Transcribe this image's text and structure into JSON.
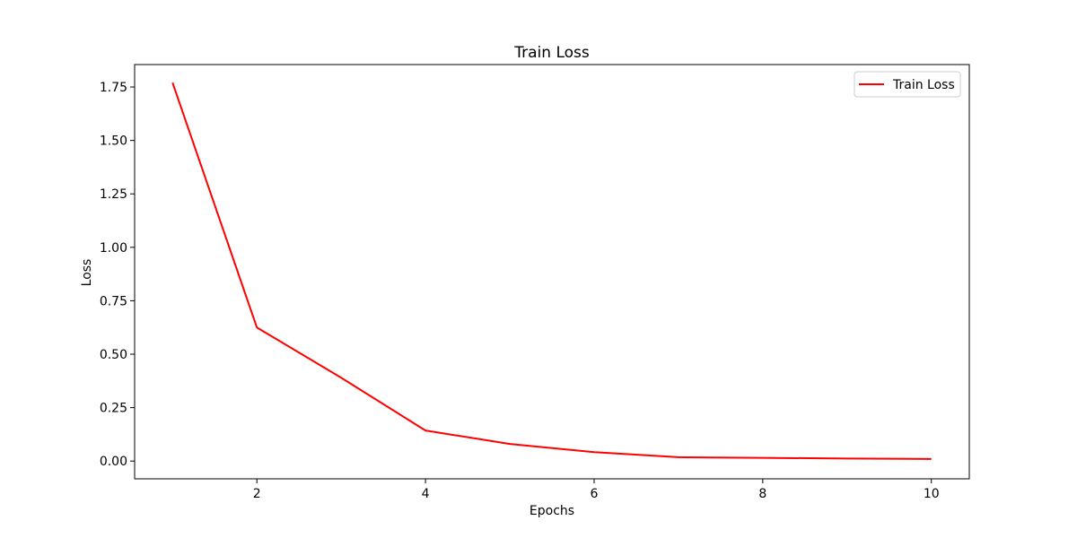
{
  "chart_data": {
    "type": "line",
    "title": "Train Loss",
    "xlabel": "Epochs",
    "ylabel": "Loss",
    "x": [
      1,
      2,
      3,
      4,
      5,
      6,
      7,
      8,
      9,
      10
    ],
    "series": [
      {
        "name": "Train Loss",
        "color": "#ff0000",
        "values": [
          1.77,
          0.625,
          0.39,
          0.143,
          0.08,
          0.042,
          0.018,
          0.015,
          0.012,
          0.01
        ]
      }
    ],
    "xlim": [
      0.55,
      10.45
    ],
    "ylim": [
      -0.083,
      1.855
    ],
    "xticks": [
      2,
      4,
      6,
      8,
      10
    ],
    "xtick_labels": [
      "2",
      "4",
      "6",
      "8",
      "10"
    ],
    "yticks": [
      0.0,
      0.25,
      0.5,
      0.75,
      1.0,
      1.25,
      1.5,
      1.75
    ],
    "ytick_labels": [
      "0.00",
      "0.25",
      "0.50",
      "0.75",
      "1.00",
      "1.25",
      "1.50",
      "1.75"
    ],
    "grid": false,
    "legend_position": "top-right"
  }
}
